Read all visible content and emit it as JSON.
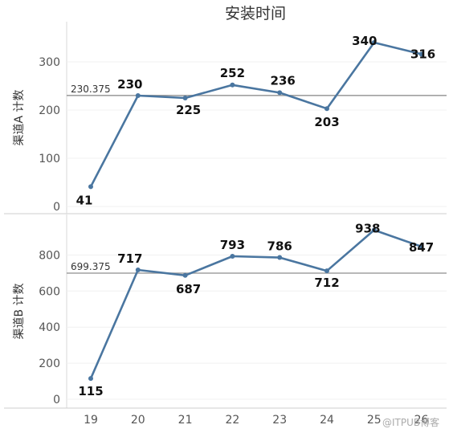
{
  "title": "安装时间",
  "watermark": "@ITPUB博客",
  "line_color": "#4a76a0",
  "ref_line_color": "#a0a0a0",
  "chart_data": {
    "type": "line",
    "title": "安装时间",
    "x": [
      "19",
      "20",
      "21",
      "22",
      "23",
      "24",
      "25",
      "26"
    ],
    "panels": [
      {
        "ylabel": "渠道A 计数",
        "ylim": [
          0,
          360
        ],
        "yticks": [
          0,
          100,
          200,
          300
        ],
        "values": [
          41,
          230,
          225,
          252,
          236,
          203,
          340,
          316
        ],
        "data_labels": [
          "41",
          "230",
          "225",
          "252",
          "236",
          "203",
          "340",
          "316"
        ],
        "reference_line": 230.375,
        "reference_label": "230.375"
      },
      {
        "ylabel": "渠道B 计数",
        "ylim": [
          0,
          980
        ],
        "yticks": [
          0,
          200,
          400,
          600,
          800
        ],
        "values": [
          115,
          717,
          687,
          793,
          786,
          712,
          938,
          847
        ],
        "data_labels": [
          "115",
          "717",
          "687",
          "793",
          "786",
          "712",
          "938",
          "847"
        ],
        "reference_line": 699.375,
        "reference_label": "699.375"
      }
    ],
    "grid": true
  }
}
